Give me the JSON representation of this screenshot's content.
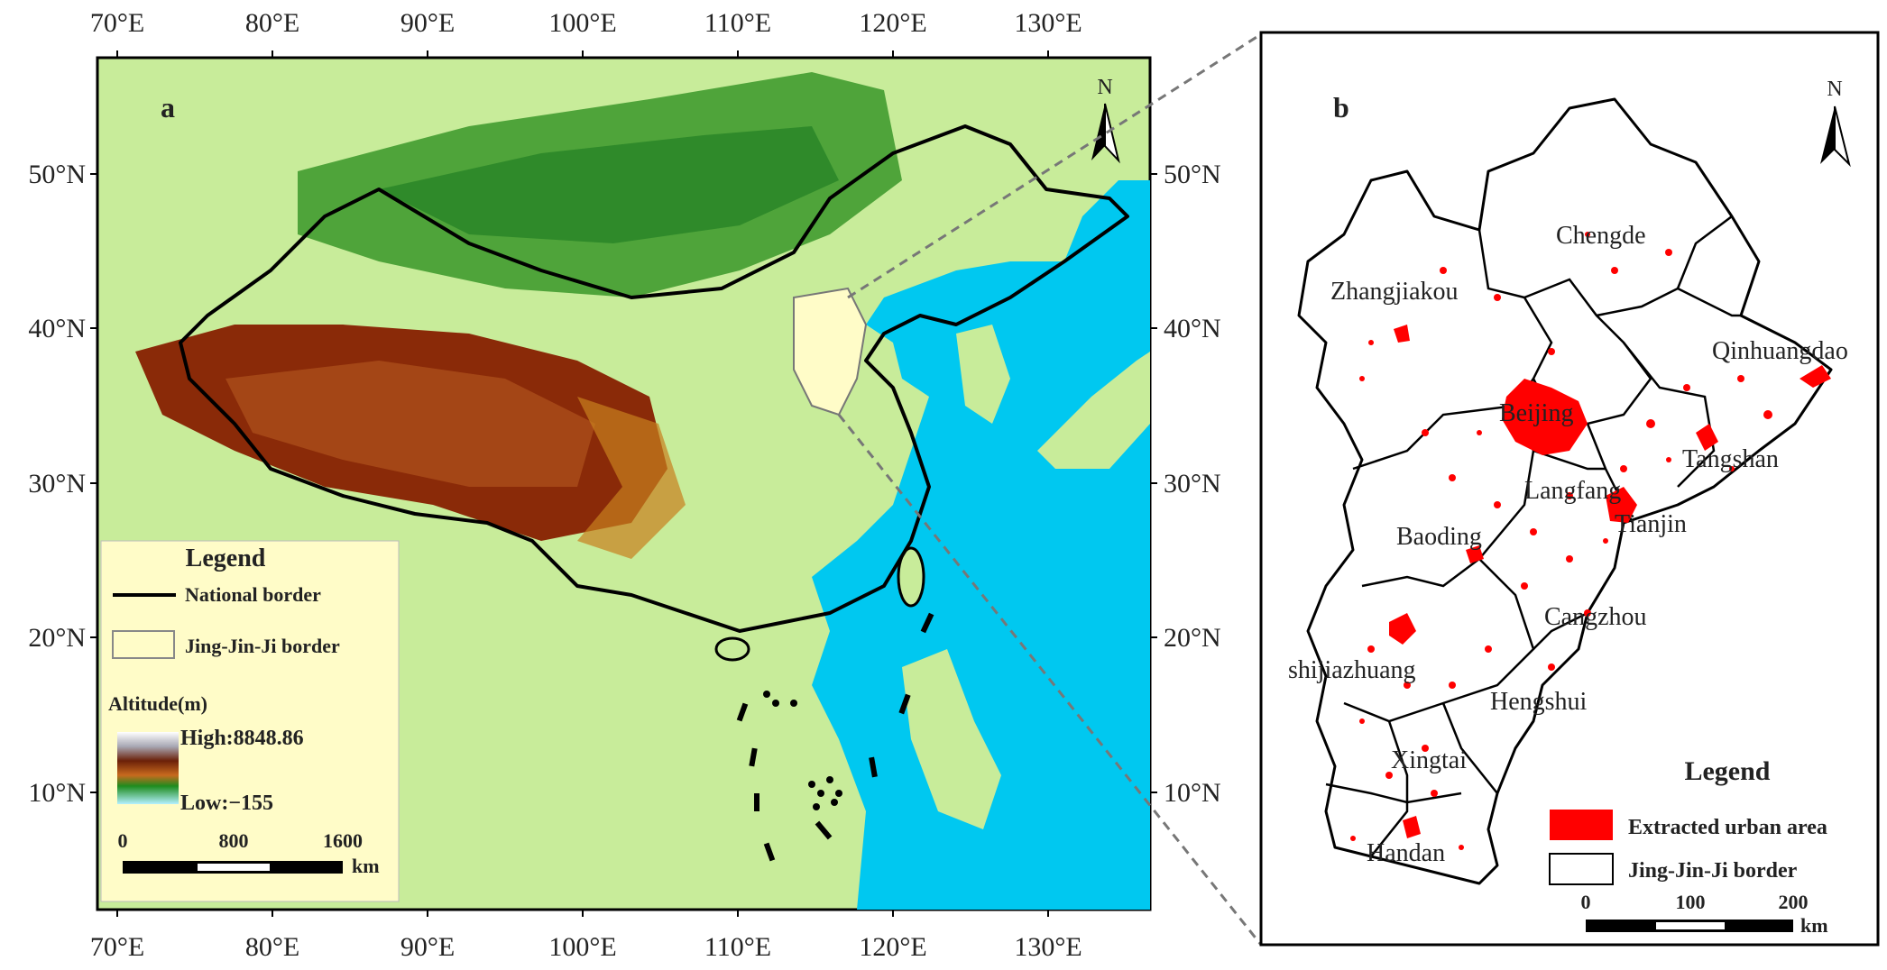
{
  "panel_a": {
    "letter": "a",
    "lon_labels": [
      "70°E",
      "80°E",
      "90°E",
      "100°E",
      "110°E",
      "120°E",
      "130°E"
    ],
    "lat_labels": [
      "50°N",
      "40°N",
      "30°N",
      "20°N",
      "10°N"
    ],
    "north": "N",
    "legend": {
      "title": "Legend",
      "national_border": "National border",
      "jjj_border": "Jing-Jin-Ji border",
      "altitude_title": "Altitude(m)",
      "high": "High:8848.86",
      "low": "Low:−155",
      "scale_labels": [
        "0",
        "800",
        "1600"
      ],
      "scale_unit": "km"
    }
  },
  "panel_b": {
    "letter": "b",
    "north": "N",
    "cities": [
      "Chengde",
      "Zhangjiakou",
      "Qinhuangdao",
      "Beijing",
      "Tangshan",
      "Langfang",
      "Tianjin",
      "Baoding",
      "Cangzhou",
      "shijiazhuang",
      "Hengshui",
      "Xingtai",
      "Handan"
    ],
    "legend": {
      "title": "Legend",
      "urban": "Extracted urban area",
      "border": "Jing-Jin-Ji border",
      "scale_labels": [
        "0",
        "100",
        "200"
      ],
      "scale_unit": "km"
    }
  },
  "colors": {
    "ocean": "#00c8f0",
    "lowland": "#c8ec9a",
    "highland": "#8a2a08",
    "urban": "#ff0000",
    "legend_bg": "#fffcc8"
  }
}
